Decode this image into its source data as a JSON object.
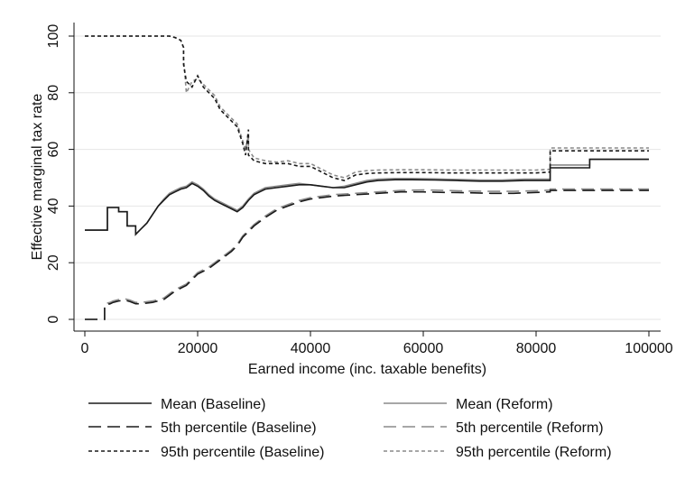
{
  "chart_data": {
    "type": "line",
    "title": "",
    "xlabel": "Earned income (inc. taxable benefits)",
    "ylabel": "Effective marginal tax rate",
    "xlim": [
      0,
      100000
    ],
    "ylim": [
      0,
      100
    ],
    "xticks": [
      0,
      20000,
      40000,
      60000,
      80000,
      100000
    ],
    "yticks": [
      0,
      20,
      40,
      60,
      80,
      100
    ],
    "xtick_labels": [
      "0",
      "20000",
      "40000",
      "60000",
      "80000",
      "100000"
    ],
    "ytick_labels": [
      "0",
      "20",
      "40",
      "60",
      "80",
      "100"
    ],
    "grid": "horizontal",
    "legend_position": "bottom",
    "series": [
      {
        "name": "Mean (Baseline)",
        "color": "#1a1a1a",
        "dash": "solid",
        "x": [
          0,
          4000,
          4000,
          6000,
          6000,
          7500,
          7500,
          9000,
          9000,
          10000,
          11000,
          12000,
          13000,
          14000,
          15000,
          16000,
          17000,
          18000,
          19000,
          20000,
          21000,
          22000,
          23000,
          24000,
          25000,
          26000,
          27000,
          28000,
          29000,
          30000,
          31000,
          32000,
          34000,
          36000,
          38000,
          40000,
          42000,
          44000,
          46000,
          48000,
          50000,
          52000,
          55000,
          58000,
          62000,
          66000,
          70000,
          74000,
          78000,
          82500,
          82500,
          89500,
          89500,
          100000
        ],
        "y": [
          31.5,
          31.5,
          39.5,
          39.5,
          38,
          38,
          33,
          33,
          30,
          32,
          34,
          37,
          40,
          42,
          44,
          45,
          46,
          46.5,
          48,
          47,
          45.5,
          43.5,
          42,
          41,
          40,
          39,
          38,
          39.5,
          42,
          44,
          45,
          46,
          46.5,
          47,
          47.5,
          47.5,
          47,
          46.5,
          46.5,
          47.5,
          48.5,
          49,
          49.3,
          49.3,
          49.2,
          49,
          48.8,
          48.8,
          49,
          49,
          53.5,
          53.5,
          56.5,
          56.5
        ]
      },
      {
        "name": "Mean (Reform)",
        "color": "#8a8a8a",
        "dash": "solid",
        "x": [
          0,
          4000,
          4000,
          6000,
          6000,
          7500,
          7500,
          9000,
          9000,
          10000,
          11000,
          12000,
          13000,
          14000,
          15000,
          16000,
          17000,
          18000,
          19000,
          20000,
          21000,
          22000,
          23000,
          24000,
          25000,
          26000,
          27000,
          28000,
          29000,
          30000,
          31000,
          32000,
          34000,
          36000,
          38000,
          40000,
          42000,
          44000,
          46000,
          48000,
          50000,
          52000,
          55000,
          58000,
          62000,
          66000,
          70000,
          74000,
          78000,
          82500,
          82500,
          89500,
          89500,
          100000
        ],
        "y": [
          31.5,
          31.5,
          39.5,
          39.5,
          38,
          38,
          33,
          33,
          30,
          32,
          34,
          37,
          40,
          42.5,
          44.5,
          45.5,
          46.5,
          47,
          48.5,
          47.5,
          46,
          44,
          42.5,
          41.5,
          40.5,
          39.5,
          38.5,
          40,
          42.5,
          44.5,
          45.5,
          46.5,
          47,
          47.5,
          48,
          47.5,
          47,
          46.5,
          47,
          48,
          49,
          49.5,
          49.7,
          49.7,
          49.6,
          49.4,
          49.2,
          49.2,
          49.5,
          49.5,
          54.5,
          54.5,
          56.5,
          56.5
        ]
      },
      {
        "name": "5th percentile (Baseline)",
        "color": "#1a1a1a",
        "dash": "long-dash",
        "x": [
          0,
          3500,
          3500,
          4500,
          5000,
          6000,
          7000,
          8000,
          9000,
          10000,
          12000,
          14000,
          15000,
          16000,
          18000,
          20000,
          22000,
          24000,
          26000,
          27000,
          28000,
          29000,
          30000,
          32000,
          34000,
          36000,
          38000,
          40000,
          44000,
          48000,
          52000,
          56000,
          60000,
          64000,
          68000,
          72000,
          76000,
          80000,
          82500,
          82500,
          90000,
          100000
        ],
        "y": [
          0,
          0,
          5,
          5.5,
          6,
          6.5,
          6.8,
          6.3,
          5.5,
          5.5,
          6,
          7,
          8.5,
          10,
          12,
          16,
          18,
          21,
          24,
          26,
          29,
          31,
          33,
          36,
          38.5,
          40,
          41.5,
          42.5,
          43.5,
          44,
          44.5,
          45,
          45,
          44.8,
          44.7,
          44.5,
          44.5,
          44.8,
          45,
          45.5,
          45.5,
          45.5
        ]
      },
      {
        "name": "5th percentile (Reform)",
        "color": "#8a8a8a",
        "dash": "long-dash",
        "x": [
          0,
          3500,
          3500,
          4500,
          5000,
          6000,
          7000,
          8000,
          9000,
          10000,
          12000,
          14000,
          15000,
          16000,
          18000,
          20000,
          22000,
          24000,
          26000,
          27000,
          28000,
          29000,
          30000,
          32000,
          34000,
          36000,
          38000,
          40000,
          44000,
          48000,
          52000,
          56000,
          60000,
          64000,
          68000,
          72000,
          76000,
          80000,
          82500,
          82500,
          90000,
          100000
        ],
        "y": [
          0,
          0,
          5.5,
          6,
          6.5,
          7,
          7.3,
          6.8,
          6,
          6,
          6.5,
          7.5,
          9,
          10.5,
          12.5,
          16.5,
          18.5,
          21.5,
          24.5,
          26.5,
          29.5,
          31.5,
          33.5,
          36.5,
          39,
          40.5,
          42,
          43,
          44,
          44.5,
          45,
          45.5,
          45.7,
          45.5,
          45.3,
          45.2,
          45.2,
          45.4,
          45.6,
          46,
          46,
          46
        ]
      },
      {
        "name": "95th percentile (Baseline)",
        "color": "#1a1a1a",
        "dash": "short-dash",
        "x": [
          0,
          15000,
          16000,
          17000,
          17500,
          17500,
          18000,
          19000,
          20000,
          21000,
          22000,
          23000,
          24000,
          25000,
          26000,
          27000,
          28000,
          28500,
          29000,
          29000,
          30000,
          32000,
          34000,
          36000,
          38000,
          40000,
          42000,
          44000,
          46000,
          48000,
          50000,
          52000,
          56000,
          60000,
          65000,
          70000,
          75000,
          80000,
          82500,
          82500,
          100000
        ],
        "y": [
          100,
          100,
          99.5,
          98.5,
          96,
          90,
          84,
          82,
          86,
          82,
          80,
          78,
          74,
          72,
          70,
          68,
          62,
          58,
          67,
          58,
          56,
          55,
          55,
          55,
          54,
          54,
          52,
          50,
          49,
          51,
          51.5,
          51.7,
          51.8,
          51.8,
          51.7,
          51.7,
          51.7,
          51.7,
          52,
          59.5,
          59.5
        ]
      },
      {
        "name": "95th percentile (Reform)",
        "color": "#8a8a8a",
        "dash": "short-dash",
        "x": [
          0,
          15000,
          16000,
          17000,
          17500,
          17500,
          18000,
          19000,
          20000,
          21000,
          22000,
          23000,
          24000,
          25000,
          26000,
          27000,
          28000,
          28500,
          29000,
          29000,
          30000,
          32000,
          34000,
          36000,
          38000,
          40000,
          42000,
          44000,
          46000,
          48000,
          50000,
          52000,
          56000,
          60000,
          65000,
          70000,
          75000,
          80000,
          82500,
          82500,
          100000
        ],
        "y": [
          100,
          100,
          99.5,
          98.5,
          96,
          92,
          80,
          84,
          85,
          83,
          81,
          79,
          75,
          73,
          71,
          69,
          63,
          60,
          65,
          60,
          57,
          56,
          55.5,
          56,
          55,
          55,
          53,
          51,
          50,
          52,
          52.5,
          52.7,
          52.8,
          52.8,
          52.7,
          52.7,
          52.7,
          52.7,
          53,
          60.5,
          60.5
        ]
      }
    ]
  }
}
